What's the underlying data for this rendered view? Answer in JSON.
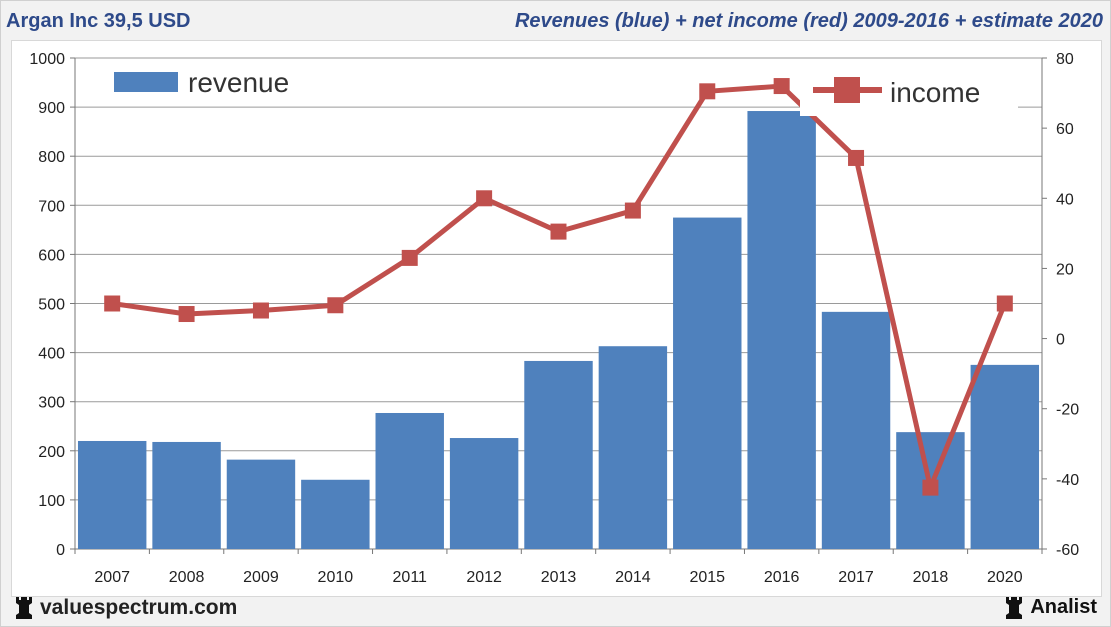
{
  "header": {
    "title_left": "Argan Inc 39,5 USD",
    "title_right": "Revenues (blue) + net income (red) 2009-2016 + estimate 2020"
  },
  "footer": {
    "brand_left": "valuespectrum.com",
    "brand_right": "Analist"
  },
  "colors": {
    "revenue": "#4f81bd",
    "income": "#c0504d"
  },
  "chart_data": {
    "type": "bar+line",
    "title": "Revenues (blue) + net income (red) 2009-2016 + estimate 2020",
    "categories": [
      "2007",
      "2008",
      "2009",
      "2010",
      "2011",
      "2012",
      "2013",
      "2014",
      "2015",
      "2016",
      "2017",
      "2018",
      "2020"
    ],
    "series": [
      {
        "name": "revenue",
        "type": "bar",
        "axis": "left",
        "values": [
          220,
          218,
          182,
          141,
          277,
          226,
          383,
          413,
          675,
          892,
          483,
          238,
          375
        ]
      },
      {
        "name": "income",
        "type": "line",
        "axis": "right",
        "values": [
          10,
          7,
          8,
          9.5,
          23,
          40,
          30.5,
          36.5,
          70.5,
          72,
          51.5,
          -42.5,
          10
        ]
      }
    ],
    "left_axis": {
      "min": 0,
      "max": 1000,
      "step": 100,
      "ticks": [
        "0",
        "100",
        "200",
        "300",
        "400",
        "500",
        "600",
        "700",
        "800",
        "900",
        "1000"
      ]
    },
    "right_axis": {
      "min": -60,
      "max": 80,
      "step": 20,
      "ticks": [
        "-60",
        "-40",
        "-20",
        "0",
        "20",
        "40",
        "60",
        "80"
      ]
    },
    "gridlines": true,
    "legend": [
      {
        "label": "revenue",
        "placement": "top-left"
      },
      {
        "label": "income",
        "placement": "top-right"
      }
    ]
  }
}
